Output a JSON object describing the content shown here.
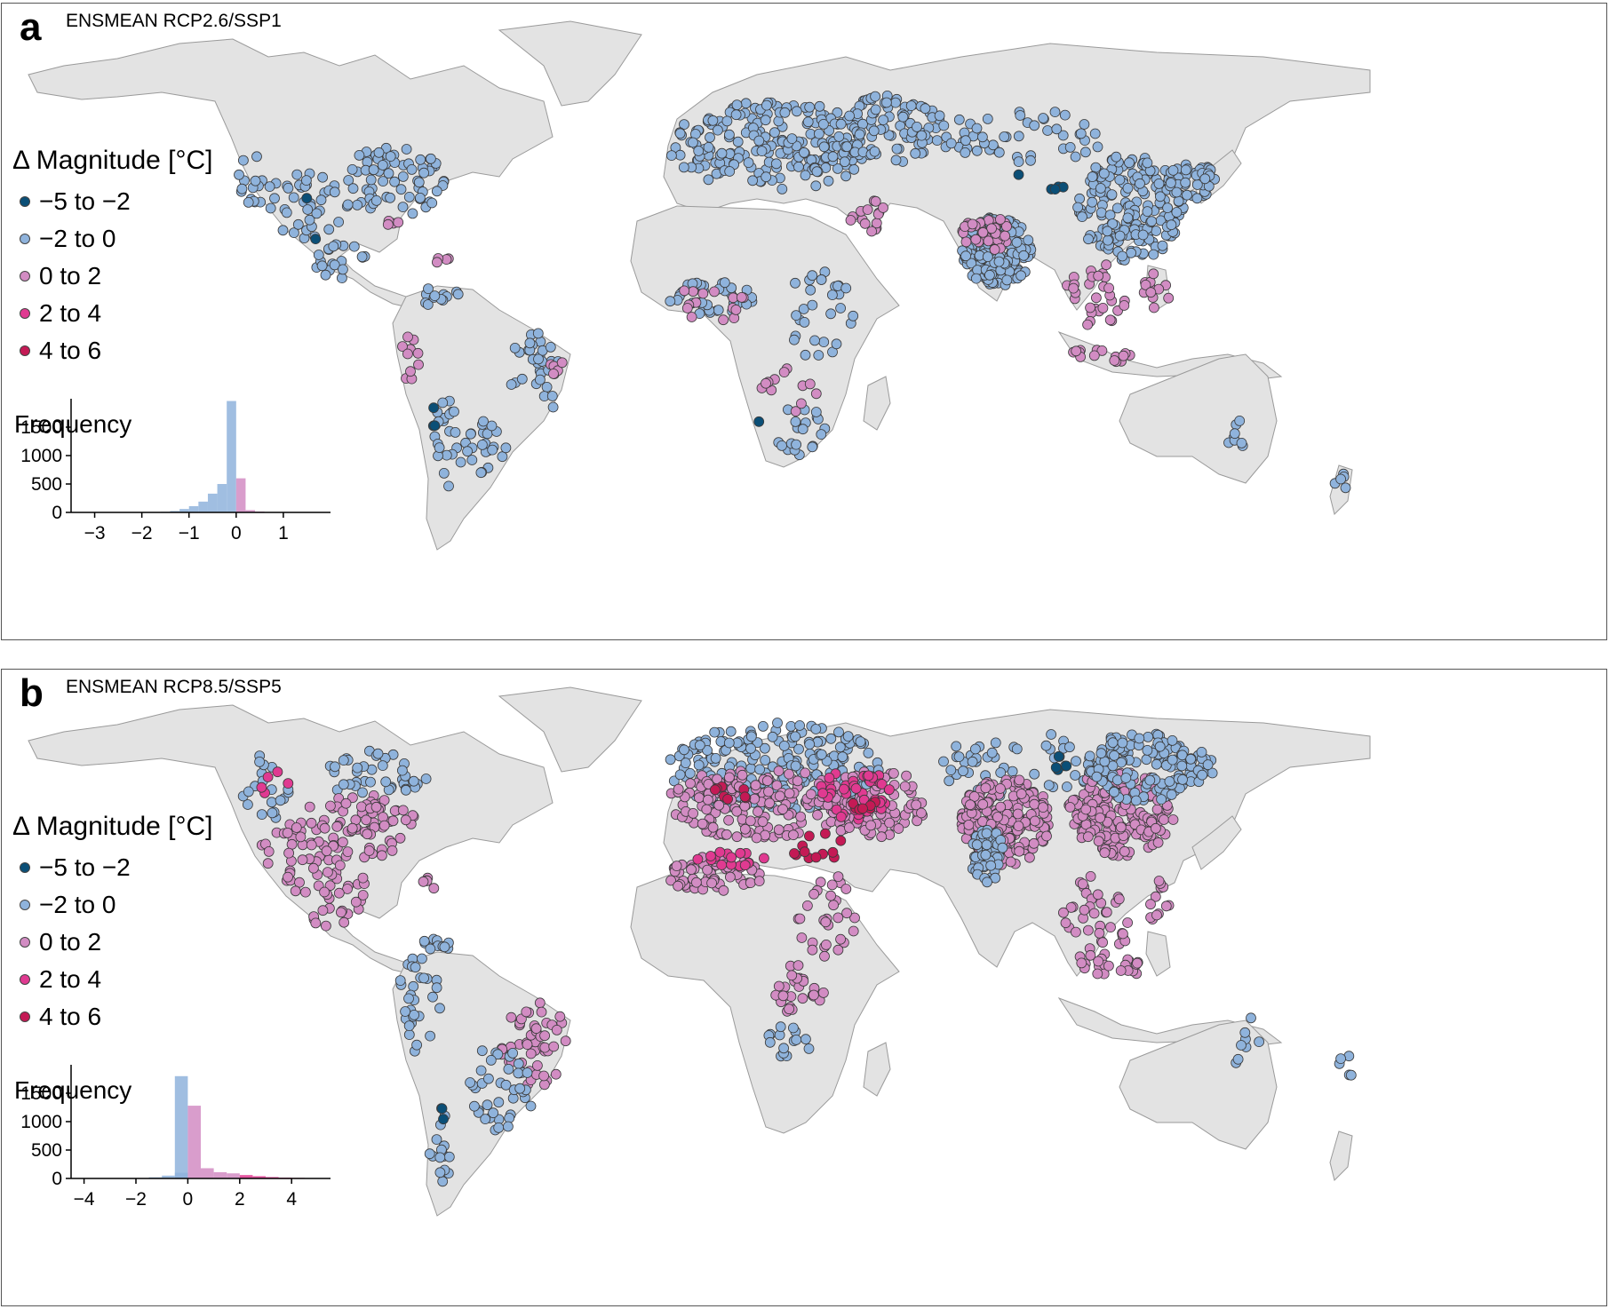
{
  "colors": {
    "land": "#e3e3e3",
    "land_stroke": "#9a9a9a",
    "c1": "#0b4f77",
    "c2": "#8fb3dc",
    "c3": "#d28cc3",
    "c4": "#e03a91",
    "c5": "#c41a55"
  },
  "panels": [
    {
      "letter": "a",
      "title": "ENSMEAN RCP2.6/SSP1",
      "legend": {
        "title": "Δ Magnitude [°C]",
        "items": [
          "−5 to −2",
          "−2 to 0",
          "0 to 2",
          "2 to 4",
          "4 to 6"
        ]
      },
      "frequency_label": "Frequency",
      "chart_data": {
        "type": "bar",
        "x_ticks": [
          "−3",
          "−2",
          "−1",
          "0",
          "1"
        ],
        "x_tick_values": [
          -3,
          -2,
          -1,
          0,
          1
        ],
        "xlim": [
          -3.5,
          2
        ],
        "y_ticks": [
          "0",
          "500",
          "1000",
          "1500"
        ],
        "y_tick_values": [
          0,
          500,
          1000,
          1500
        ],
        "ylim": [
          0,
          2000
        ],
        "bin_width": 0.2,
        "bins": [
          {
            "x": -1.6,
            "v": 10,
            "c": "c2"
          },
          {
            "x": -1.4,
            "v": 25,
            "c": "c2"
          },
          {
            "x": -1.2,
            "v": 60,
            "c": "c2"
          },
          {
            "x": -1.0,
            "v": 110,
            "c": "c2"
          },
          {
            "x": -0.8,
            "v": 190,
            "c": "c2"
          },
          {
            "x": -0.6,
            "v": 330,
            "c": "c2"
          },
          {
            "x": -0.4,
            "v": 500,
            "c": "c2"
          },
          {
            "x": -0.2,
            "v": 1960,
            "c": "c2"
          },
          {
            "x": 0.0,
            "v": 600,
            "c": "c3"
          },
          {
            "x": 0.2,
            "v": 40,
            "c": "c3"
          },
          {
            "x": 0.4,
            "v": 15,
            "c": "c3"
          },
          {
            "x": 0.6,
            "v": 5,
            "c": "c3"
          }
        ]
      }
    },
    {
      "letter": "b",
      "title": "ENSMEAN RCP8.5/SSP5",
      "legend": {
        "title": "Δ Magnitude [°C]",
        "items": [
          "−5 to −2",
          "−2 to 0",
          "0 to 2",
          "2 to 4",
          "4 to 6"
        ]
      },
      "frequency_label": "Frequency",
      "chart_data": {
        "type": "bar",
        "x_ticks": [
          "−4",
          "−2",
          "0",
          "2",
          "4"
        ],
        "x_tick_values": [
          -4,
          -2,
          0,
          2,
          4
        ],
        "xlim": [
          -4.5,
          5.5
        ],
        "y_ticks": [
          "0",
          "500",
          "1000",
          "1500"
        ],
        "y_tick_values": [
          0,
          500,
          1000,
          1500
        ],
        "ylim": [
          0,
          2000
        ],
        "bin_width": 0.5,
        "bins": [
          {
            "x": -1.5,
            "v": 20,
            "c": "c2"
          },
          {
            "x": -1.0,
            "v": 50,
            "c": "c2"
          },
          {
            "x": -0.5,
            "v": 100,
            "c": "c2"
          },
          {
            "x": -0.5,
            "v": 1800,
            "c": "c2"
          },
          {
            "x": 0.0,
            "v": 1280,
            "c": "c3"
          },
          {
            "x": 0.5,
            "v": 180,
            "c": "c3"
          },
          {
            "x": 1.0,
            "v": 110,
            "c": "c3"
          },
          {
            "x": 1.5,
            "v": 90,
            "c": "c3"
          },
          {
            "x": 2.0,
            "v": 60,
            "c": "c4"
          },
          {
            "x": 2.5,
            "v": 40,
            "c": "c4"
          },
          {
            "x": 3.0,
            "v": 25,
            "c": "c4"
          },
          {
            "x": 3.5,
            "v": 15,
            "c": "c4"
          },
          {
            "x": 4.0,
            "v": 10,
            "c": "c5"
          },
          {
            "x": 4.5,
            "v": 5,
            "c": "c5"
          }
        ]
      }
    }
  ]
}
